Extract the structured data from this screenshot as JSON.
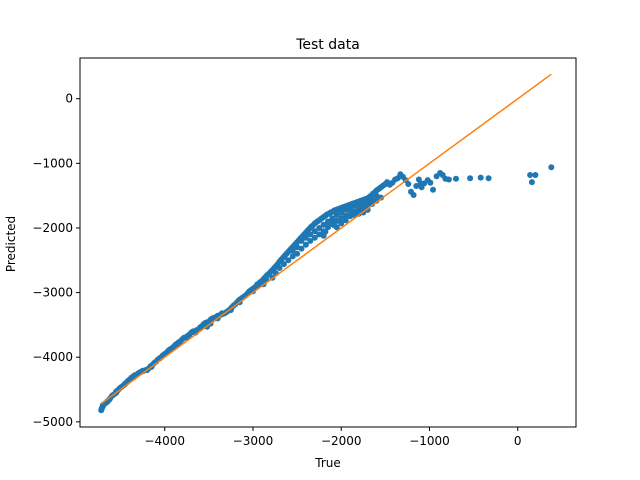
{
  "chart_data": {
    "type": "scatter",
    "title": "Test data",
    "xlabel": "True",
    "ylabel": "Predicted",
    "xlim": [
      -4960,
      660
    ],
    "ylim": [
      -5080,
      630
    ],
    "xticks": [
      -4000,
      -3000,
      -2000,
      -1000,
      0
    ],
    "xtick_labels": [
      "−4000",
      "−3000",
      "−2000",
      "−1000",
      "0"
    ],
    "yticks": [
      0,
      -1000,
      -2000,
      -3000,
      -4000,
      -5000
    ],
    "ytick_labels": [
      "0",
      "−1000",
      "−2000",
      "−3000",
      "−4000",
      "−5000"
    ],
    "grid": false,
    "legend": "none",
    "series": [
      {
        "type": "scatter",
        "color": "#1f77b4",
        "points": [
          [
            -4720,
            -4820
          ],
          [
            -4710,
            -4780
          ],
          [
            -4700,
            -4760
          ],
          [
            -4680,
            -4720
          ],
          [
            -4660,
            -4700
          ],
          [
            -4650,
            -4680
          ],
          [
            -4630,
            -4660
          ],
          [
            -4620,
            -4640
          ],
          [
            -4600,
            -4600
          ],
          [
            -4580,
            -4580
          ],
          [
            -4560,
            -4560
          ],
          [
            -4550,
            -4530
          ],
          [
            -4530,
            -4510
          ],
          [
            -4510,
            -4480
          ],
          [
            -4490,
            -4460
          ],
          [
            -4470,
            -4440
          ],
          [
            -4450,
            -4410
          ],
          [
            -4430,
            -4390
          ],
          [
            -4420,
            -4370
          ],
          [
            -4400,
            -4350
          ],
          [
            -4380,
            -4320
          ],
          [
            -4360,
            -4300
          ],
          [
            -4340,
            -4280
          ],
          [
            -4320,
            -4270
          ],
          [
            -4300,
            -4250
          ],
          [
            -4280,
            -4230
          ],
          [
            -4250,
            -4210
          ],
          [
            -4220,
            -4200
          ],
          [
            -4200,
            -4200
          ],
          [
            -4180,
            -4170
          ],
          [
            -4160,
            -4140
          ],
          [
            -4140,
            -4120
          ],
          [
            -4120,
            -4090
          ],
          [
            -4100,
            -4070
          ],
          [
            -4080,
            -4040
          ],
          [
            -4060,
            -4020
          ],
          [
            -4040,
            -4000
          ],
          [
            -4020,
            -3970
          ],
          [
            -4000,
            -3950
          ],
          [
            -3980,
            -3930
          ],
          [
            -3960,
            -3900
          ],
          [
            -3940,
            -3880
          ],
          [
            -3920,
            -3860
          ],
          [
            -3900,
            -3840
          ],
          [
            -3880,
            -3810
          ],
          [
            -3860,
            -3790
          ],
          [
            -3840,
            -3770
          ],
          [
            -3820,
            -3750
          ],
          [
            -3800,
            -3720
          ],
          [
            -3780,
            -3700
          ],
          [
            -3760,
            -3690
          ],
          [
            -3740,
            -3670
          ],
          [
            -3720,
            -3650
          ],
          [
            -3700,
            -3620
          ],
          [
            -3680,
            -3600
          ],
          [
            -3660,
            -3600
          ],
          [
            -3640,
            -3580
          ],
          [
            -3600,
            -3540
          ],
          [
            -3580,
            -3520
          ],
          [
            -3560,
            -3490
          ],
          [
            -3540,
            -3470
          ],
          [
            -3520,
            -3460
          ],
          [
            -3500,
            -3450
          ],
          [
            -3480,
            -3420
          ],
          [
            -3460,
            -3400
          ],
          [
            -3440,
            -3390
          ],
          [
            -3420,
            -3380
          ],
          [
            -3400,
            -3360
          ],
          [
            -3380,
            -3350
          ],
          [
            -3360,
            -3340
          ],
          [
            -3340,
            -3330
          ],
          [
            -3320,
            -3320
          ],
          [
            -3300,
            -3300
          ],
          [
            -3280,
            -3280
          ],
          [
            -3260,
            -3260
          ],
          [
            -3240,
            -3230
          ],
          [
            -3220,
            -3200
          ],
          [
            -3200,
            -3180
          ],
          [
            -3180,
            -3150
          ],
          [
            -3160,
            -3120
          ],
          [
            -3140,
            -3100
          ],
          [
            -3120,
            -3080
          ],
          [
            -3100,
            -3060
          ],
          [
            -3080,
            -3040
          ],
          [
            -3060,
            -3010
          ],
          [
            -3040,
            -2980
          ],
          [
            -3020,
            -2960
          ],
          [
            -3000,
            -2940
          ],
          [
            -2980,
            -2920
          ],
          [
            -2960,
            -2900
          ],
          [
            -2940,
            -2880
          ],
          [
            -2920,
            -2840
          ],
          [
            -2900,
            -2820
          ],
          [
            -2880,
            -2790
          ],
          [
            -2860,
            -2760
          ],
          [
            -2840,
            -2730
          ],
          [
            -2820,
            -2710
          ],
          [
            -2800,
            -2680
          ],
          [
            -2780,
            -2650
          ],
          [
            -2760,
            -2620
          ],
          [
            -2740,
            -2590
          ],
          [
            -2720,
            -2560
          ],
          [
            -2700,
            -2520
          ],
          [
            -2680,
            -2490
          ],
          [
            -2660,
            -2460
          ],
          [
            -2640,
            -2430
          ],
          [
            -2620,
            -2400
          ],
          [
            -2600,
            -2370
          ],
          [
            -2580,
            -2340
          ],
          [
            -2560,
            -2310
          ],
          [
            -2540,
            -2280
          ],
          [
            -2520,
            -2250
          ],
          [
            -2500,
            -2220
          ],
          [
            -2480,
            -2190
          ],
          [
            -2460,
            -2160
          ],
          [
            -2440,
            -2130
          ],
          [
            -2420,
            -2100
          ],
          [
            -2400,
            -2070
          ],
          [
            -2380,
            -2040
          ],
          [
            -2360,
            -2010
          ],
          [
            -2340,
            -1980
          ],
          [
            -2320,
            -1960
          ],
          [
            -2300,
            -1930
          ],
          [
            -2280,
            -1910
          ],
          [
            -2260,
            -1890
          ],
          [
            -2240,
            -1870
          ],
          [
            -2220,
            -1850
          ],
          [
            -2200,
            -1830
          ],
          [
            -2180,
            -1810
          ],
          [
            -2160,
            -1790
          ],
          [
            -2140,
            -1780
          ],
          [
            -2120,
            -1760
          ],
          [
            -2100,
            -1750
          ],
          [
            -2080,
            -1730
          ],
          [
            -2060,
            -1720
          ],
          [
            -2040,
            -1710
          ],
          [
            -2020,
            -1700
          ],
          [
            -2000,
            -1690
          ],
          [
            -1980,
            -1680
          ],
          [
            -1960,
            -1670
          ],
          [
            -1940,
            -1660
          ],
          [
            -1920,
            -1650
          ],
          [
            -1900,
            -1640
          ],
          [
            -1880,
            -1630
          ],
          [
            -1860,
            -1620
          ],
          [
            -1840,
            -1610
          ],
          [
            -1820,
            -1600
          ],
          [
            -1800,
            -1590
          ],
          [
            -1780,
            -1580
          ],
          [
            -1760,
            -1570
          ],
          [
            -1740,
            -1560
          ],
          [
            -1720,
            -1550
          ],
          [
            -1700,
            -1540
          ],
          [
            -1680,
            -1520
          ],
          [
            -1660,
            -1500
          ],
          [
            -1640,
            -1470
          ],
          [
            -1620,
            -1450
          ],
          [
            -1600,
            -1420
          ],
          [
            -1580,
            -1400
          ],
          [
            -1560,
            -1380
          ],
          [
            -1540,
            -1360
          ],
          [
            -1520,
            -1340
          ],
          [
            -1500,
            -1320
          ],
          [
            -2700,
            -2620
          ],
          [
            -2650,
            -2560
          ],
          [
            -2600,
            -2500
          ],
          [
            -2550,
            -2440
          ],
          [
            -2500,
            -2400
          ],
          [
            -2450,
            -2320
          ],
          [
            -2400,
            -2260
          ],
          [
            -2350,
            -2200
          ],
          [
            -2300,
            -2150
          ],
          [
            -2250,
            -2100
          ],
          [
            -2200,
            -2050
          ],
          [
            -2150,
            -1990
          ],
          [
            -2100,
            -1940
          ],
          [
            -2050,
            -1890
          ],
          [
            -2000,
            -1850
          ],
          [
            -1950,
            -1810
          ],
          [
            -1900,
            -1780
          ],
          [
            -1850,
            -1750
          ],
          [
            -1800,
            -1710
          ],
          [
            -1750,
            -1690
          ],
          [
            -1700,
            -1660
          ],
          [
            -1650,
            -1630
          ],
          [
            -1600,
            -1580
          ],
          [
            -1550,
            -1530
          ],
          [
            -2550,
            -2350
          ],
          [
            -2500,
            -2300
          ],
          [
            -2450,
            -2200
          ],
          [
            -2400,
            -2150
          ],
          [
            -2350,
            -2100
          ],
          [
            -2300,
            -2050
          ],
          [
            -2250,
            -2000
          ],
          [
            -2200,
            -1950
          ],
          [
            -2150,
            -1900
          ],
          [
            -2100,
            -1850
          ],
          [
            -2050,
            -1800
          ],
          [
            -2000,
            -1760
          ],
          [
            -1950,
            -1720
          ],
          [
            -1900,
            -1700
          ],
          [
            -1850,
            -1660
          ],
          [
            -1800,
            -1640
          ],
          [
            -1750,
            -1620
          ],
          [
            -1700,
            -1590
          ],
          [
            -1650,
            -1560
          ],
          [
            -1600,
            -1500
          ],
          [
            -2950,
            -2870
          ],
          [
            -2900,
            -2860
          ],
          [
            -2850,
            -2800
          ],
          [
            -3050,
            -3000
          ],
          [
            -3000,
            -2980
          ],
          [
            -3150,
            -3150
          ],
          [
            -3250,
            -3270
          ],
          [
            -3350,
            -3320
          ],
          [
            -3450,
            -3410
          ],
          [
            -3550,
            -3500
          ],
          [
            -3650,
            -3620
          ],
          [
            -3750,
            -3700
          ],
          [
            -3850,
            -3800
          ],
          [
            -3950,
            -3890
          ],
          [
            -4050,
            -4010
          ],
          [
            -4150,
            -4150
          ],
          [
            -4250,
            -4220
          ],
          [
            -4350,
            -4310
          ],
          [
            -4450,
            -4420
          ],
          [
            -4550,
            -4550
          ],
          [
            -4650,
            -4690
          ],
          [
            -4700,
            -4740
          ],
          [
            -4715,
            -4800
          ],
          [
            -3520,
            -3530
          ],
          [
            -3480,
            -3480
          ],
          [
            -3400,
            -3400
          ],
          [
            -2880,
            -2870
          ],
          [
            -2780,
            -2770
          ],
          [
            -2740,
            -2700
          ],
          [
            -2200,
            -2120
          ],
          [
            -2180,
            -2060
          ],
          [
            -2050,
            -1990
          ],
          [
            -2000,
            -1930
          ],
          [
            -1950,
            -1880
          ],
          [
            -1900,
            -1820
          ],
          [
            -1850,
            -1800
          ],
          [
            -1800,
            -1780
          ],
          [
            -1750,
            -1760
          ],
          [
            -1700,
            -1720
          ],
          [
            -2150,
            -1960
          ],
          [
            -2100,
            -1920
          ],
          [
            -2080,
            -1960
          ],
          [
            -1480,
            -1290
          ],
          [
            -1450,
            -1330
          ],
          [
            -1420,
            -1300
          ],
          [
            -1390,
            -1250
          ],
          [
            -1360,
            -1230
          ],
          [
            -1330,
            -1170
          ],
          [
            -1300,
            -1210
          ],
          [
            -1270,
            -1260
          ],
          [
            -1240,
            -1320
          ],
          [
            -1210,
            -1440
          ],
          [
            -1180,
            -1490
          ],
          [
            -1150,
            -1350
          ],
          [
            -1120,
            -1250
          ],
          [
            -1100,
            -1310
          ],
          [
            -1090,
            -1370
          ],
          [
            -1060,
            -1310
          ],
          [
            -1020,
            -1260
          ],
          [
            -990,
            -1300
          ],
          [
            -960,
            -1410
          ],
          [
            -920,
            -1200
          ],
          [
            -880,
            -1150
          ],
          [
            -850,
            -1180
          ],
          [
            -820,
            -1240
          ],
          [
            -780,
            -1250
          ],
          [
            -700,
            -1240
          ],
          [
            -540,
            -1230
          ],
          [
            -420,
            -1220
          ],
          [
            -330,
            -1230
          ],
          [
            140,
            -1180
          ],
          [
            160,
            -1290
          ],
          [
            200,
            -1180
          ],
          [
            380,
            -1060
          ]
        ]
      },
      {
        "type": "line",
        "color": "#ff7f0e",
        "points": [
          [
            -4720,
            -4720
          ],
          [
            380,
            380
          ]
        ]
      }
    ]
  }
}
